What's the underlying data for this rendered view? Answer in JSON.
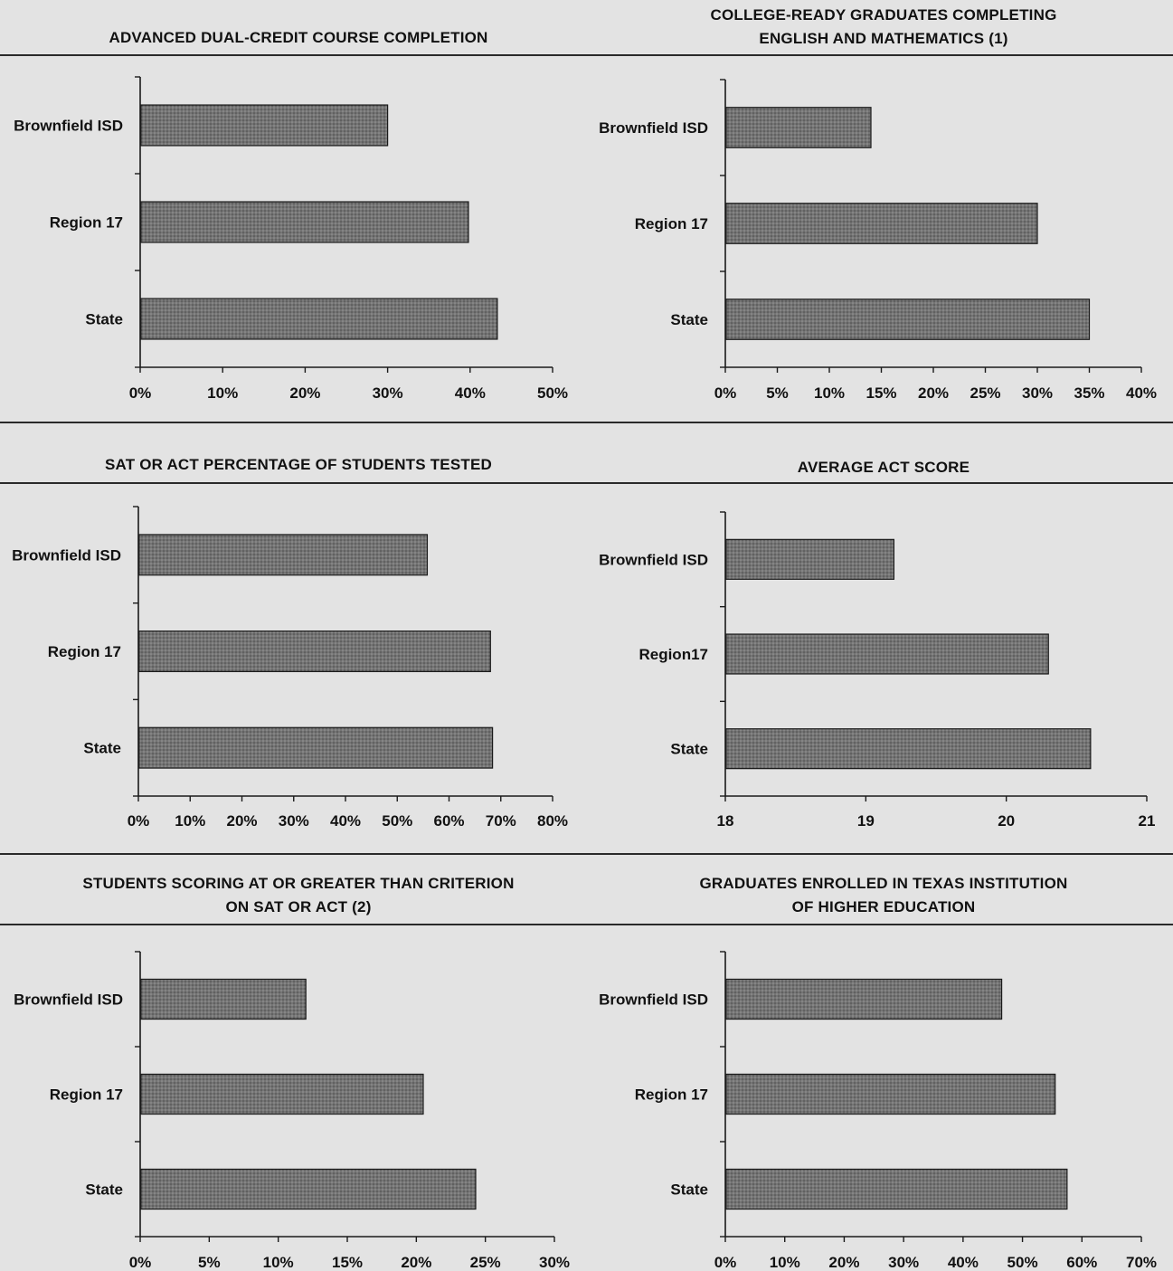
{
  "chart_data": [
    {
      "type": "bar",
      "orientation": "horizontal",
      "title_lines": [
        "ADVANCED DUAL-CREDIT COURSE COMPLETION"
      ],
      "categories": [
        "Brownfield ISD",
        "Region 17",
        "State"
      ],
      "values": [
        30.0,
        39.8,
        43.3
      ],
      "xlim": [
        0,
        50
      ],
      "xticks": [
        0,
        10,
        20,
        30,
        40,
        50
      ],
      "tick_labels": [
        "0%",
        "10%",
        "20%",
        "30%",
        "40%",
        "50%"
      ]
    },
    {
      "type": "bar",
      "orientation": "horizontal",
      "title_lines": [
        "COLLEGE-READY GRADUATES COMPLETING",
        "ENGLISH AND MATHEMATICS (1)"
      ],
      "categories": [
        "Brownfield ISD",
        "Region 17",
        "State"
      ],
      "values": [
        14.0,
        30.0,
        35.0
      ],
      "xlim": [
        0,
        40
      ],
      "xticks": [
        0,
        5,
        10,
        15,
        20,
        25,
        30,
        35,
        40
      ],
      "tick_labels": [
        "0%",
        "5%",
        "10%",
        "15%",
        "20%",
        "25%",
        "30%",
        "35%",
        "40%"
      ]
    },
    {
      "type": "bar",
      "orientation": "horizontal",
      "title_lines": [
        "SAT OR ACT PERCENTAGE OF STUDENTS TESTED"
      ],
      "categories": [
        "Brownfield ISD",
        "Region 17",
        "State"
      ],
      "values": [
        55.8,
        68.0,
        68.4
      ],
      "xlim": [
        0,
        80
      ],
      "xticks": [
        0,
        10,
        20,
        30,
        40,
        50,
        60,
        70,
        80
      ],
      "tick_labels": [
        "0%",
        "10%",
        "20%",
        "30%",
        "40%",
        "50%",
        "60%",
        "70%",
        "80%"
      ]
    },
    {
      "type": "bar",
      "orientation": "horizontal",
      "title_lines": [
        "AVERAGE ACT SCORE"
      ],
      "categories": [
        "Brownfield ISD",
        "Region17",
        "State"
      ],
      "values": [
        19.2,
        20.3,
        20.6
      ],
      "xlim": [
        18,
        21
      ],
      "xticks": [
        18,
        19,
        20,
        21
      ],
      "tick_labels": [
        "18",
        "19",
        "20",
        "21"
      ]
    },
    {
      "type": "bar",
      "orientation": "horizontal",
      "title_lines": [
        "STUDENTS SCORING AT OR GREATER THAN CRITERION",
        "ON SAT OR ACT (2)"
      ],
      "categories": [
        "Brownfield ISD",
        "Region 17",
        "State"
      ],
      "values": [
        12.0,
        20.5,
        24.3
      ],
      "xlim": [
        0,
        30
      ],
      "xticks": [
        0,
        5,
        10,
        15,
        20,
        25,
        30
      ],
      "tick_labels": [
        "0%",
        "5%",
        "10%",
        "15%",
        "20%",
        "25%",
        "30%"
      ]
    },
    {
      "type": "bar",
      "orientation": "horizontal",
      "title_lines": [
        "GRADUATES ENROLLED IN TEXAS INSTITUTION",
        "OF HIGHER EDUCATION"
      ],
      "categories": [
        "Brownfield ISD",
        "Region 17",
        "State"
      ],
      "values": [
        46.5,
        55.5,
        57.5
      ],
      "xlim": [
        0,
        70
      ],
      "xticks": [
        0,
        10,
        20,
        30,
        40,
        50,
        60,
        70
      ],
      "tick_labels": [
        "0%",
        "10%",
        "20%",
        "30%",
        "40%",
        "50%",
        "60%",
        "70%"
      ]
    }
  ],
  "colors": {
    "background": "#e3e3e3",
    "bar_fill": "#6f6f6f",
    "bar_outline": "#1a1a1a",
    "axis": "#1a1a1a",
    "text": "#111111"
  }
}
